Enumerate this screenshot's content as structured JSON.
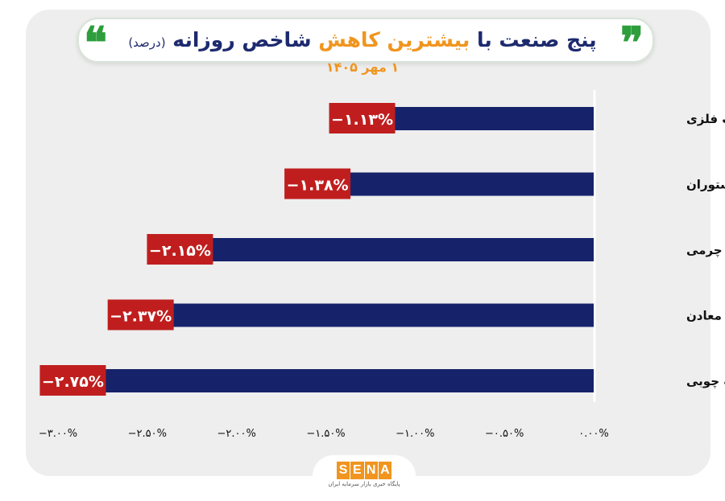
{
  "header": {
    "title_part1": "پنج صنعت با",
    "title_highlight": "بیشترین کاهش",
    "title_part2": "شاخص روزانه",
    "title_unit": "(درصد)",
    "date": "۱ مهر ۱۴۰۵"
  },
  "logo": {
    "letters": [
      "S",
      "E",
      "N",
      "A"
    ],
    "subtitle": "پایگاه خبری بازار سرمایه ایران"
  },
  "colors": {
    "bar": "#16236b",
    "label_bg": "#c01e1e",
    "label_text": "#ffffff",
    "title": "#1d2a6e",
    "highlight": "#f0951f"
  },
  "chart_data": {
    "type": "bar",
    "orientation": "horizontal",
    "categories": [
      "محصولات فلزی",
      "هتل و رستوران",
      "محصولات چرمی",
      "سایر معادن",
      "محصولات چوبی"
    ],
    "values": [
      -1.13,
      -1.38,
      -2.15,
      -2.37,
      -2.75
    ],
    "value_labels": [
      "−۱.۱۳%",
      "−۱.۳۸%",
      "−۲.۱۵%",
      "−۲.۳۷%",
      "−۲.۷۵%"
    ],
    "xlim": [
      -3.0,
      0.0
    ],
    "x_ticks": [
      -3.0,
      -2.5,
      -2.0,
      -1.5,
      -1.0,
      -0.5,
      0.0
    ],
    "x_tick_labels": [
      "−۳.۰۰%",
      "−۲.۵۰%",
      "−۲.۰۰%",
      "−۱.۵۰%",
      "−۱.۰۰%",
      "−۰.۵۰%",
      "۰.۰۰%"
    ],
    "grid": false,
    "legend": "none"
  }
}
